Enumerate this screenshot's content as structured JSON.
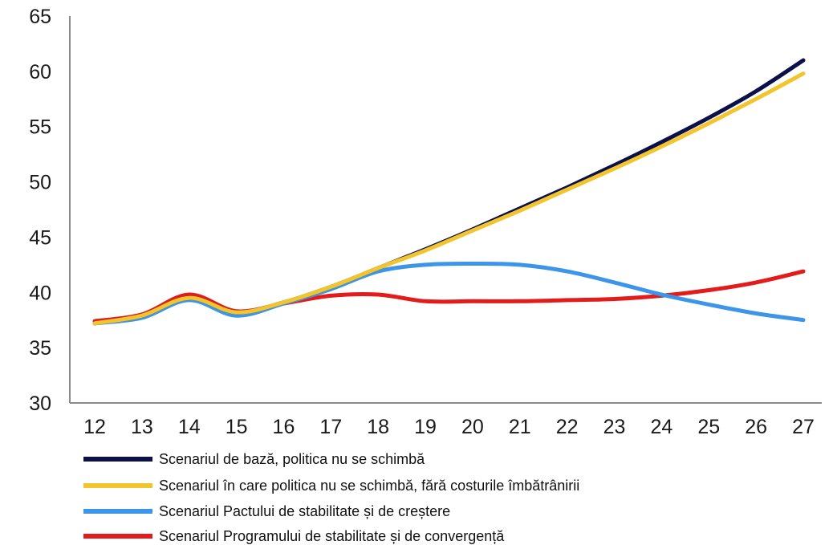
{
  "chart_data": {
    "type": "line",
    "x": [
      "12",
      "13",
      "14",
      "15",
      "16",
      "17",
      "18",
      "19",
      "20",
      "21",
      "22",
      "23",
      "24",
      "25",
      "26",
      "27"
    ],
    "ylim": [
      30,
      65
    ],
    "yticks": [
      30,
      35,
      40,
      45,
      50,
      55,
      60,
      65
    ],
    "grid": false,
    "legend_position": "bottom",
    "series": [
      {
        "name": "Scenariul de bază, politica nu se schimbă",
        "color": "#0b0f4a",
        "values": [
          37.2,
          37.9,
          39.5,
          38.2,
          39.1,
          40.5,
          42.2,
          43.9,
          45.7,
          47.6,
          49.5,
          51.5,
          53.6,
          55.8,
          58.2,
          61.0
        ]
      },
      {
        "name": "Scenariul în care politica nu se schimbă, fără costurile îmbătrânirii",
        "color": "#f2c52e",
        "values": [
          37.2,
          37.9,
          39.5,
          38.2,
          39.1,
          40.5,
          42.2,
          43.8,
          45.6,
          47.4,
          49.3,
          51.2,
          53.2,
          55.3,
          57.5,
          59.8
        ]
      },
      {
        "name": "Scenariul Pactului de stabilitate și de creștere",
        "color": "#3d95ea",
        "values": [
          37.2,
          37.7,
          39.3,
          37.9,
          39.0,
          40.3,
          41.9,
          42.5,
          42.6,
          42.5,
          41.9,
          40.9,
          39.8,
          38.9,
          38.1,
          37.5
        ]
      },
      {
        "name": "Scenariul Programului de stabilitate și de convergență",
        "color": "#e31b1b",
        "values": [
          37.4,
          38.0,
          39.8,
          38.3,
          39.0,
          39.7,
          39.8,
          39.2,
          39.2,
          39.2,
          39.3,
          39.4,
          39.7,
          40.2,
          40.9,
          41.9
        ]
      }
    ]
  }
}
